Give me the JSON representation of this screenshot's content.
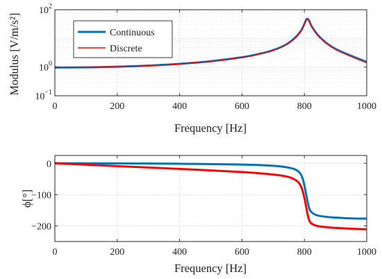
{
  "chart_data": [
    {
      "type": "line",
      "xlabel": "Frequency [Hz]",
      "ylabel": "Modulus [V/m/s²]",
      "xlim": [
        0,
        1000
      ],
      "ylim": [
        0.1,
        100
      ],
      "yscale": "log",
      "grid": true,
      "legend_position": "top-left",
      "x_ticks": [
        "0",
        "200",
        "400",
        "600",
        "800",
        "1000"
      ],
      "y_tick_mantissa": "10",
      "y_tick_exponents": [
        "−1",
        "0",
        "2"
      ],
      "y_tick_values": [
        0.1,
        1,
        100
      ],
      "x": [
        0,
        100,
        200,
        300,
        400,
        500,
        600,
        650,
        700,
        740,
        770,
        790,
        800,
        806,
        810,
        815,
        825,
        850,
        900,
        1000
      ],
      "series": [
        {
          "name": "Continuous",
          "color": "#0072BD",
          "values": [
            0.97,
            0.98,
            1.03,
            1.13,
            1.3,
            1.6,
            2.2,
            2.8,
            3.9,
            6.0,
            10.5,
            19.0,
            32.0,
            45.0,
            48.0,
            42.0,
            25.0,
            11.0,
            4.3,
            1.5
          ]
        },
        {
          "name": "Discrete",
          "color": "#FF0000",
          "values": [
            0.96,
            0.97,
            1.02,
            1.12,
            1.28,
            1.58,
            2.15,
            2.75,
            3.8,
            5.9,
            10.2,
            18.6,
            31.0,
            44.0,
            47.0,
            41.0,
            24.0,
            10.5,
            4.1,
            1.4
          ]
        }
      ]
    },
    {
      "type": "line",
      "xlabel": "Frequency [Hz]",
      "ylabel": "ϕ[°]",
      "xlim": [
        0,
        1000
      ],
      "ylim": [
        -250,
        25
      ],
      "grid": true,
      "x_ticks": [
        "0",
        "200",
        "400",
        "600",
        "800",
        "1000"
      ],
      "y_ticks": [
        "0",
        "−100",
        "−200"
      ],
      "y_tick_values": [
        0,
        -100,
        -200
      ],
      "x": [
        0,
        200,
        400,
        600,
        700,
        750,
        780,
        795,
        805,
        812,
        820,
        840,
        880,
        950,
        1000
      ],
      "series": [
        {
          "name": "Continuous",
          "color": "#0072BD",
          "values": [
            0,
            -0.5,
            -1.5,
            -4,
            -8,
            -14,
            -25,
            -50,
            -95,
            -130,
            -153,
            -166,
            -172,
            -176,
            -177
          ]
        },
        {
          "name": "Discrete",
          "color": "#FF0000",
          "values": [
            0,
            -9,
            -18,
            -28,
            -36,
            -44,
            -60,
            -90,
            -135,
            -170,
            -190,
            -200,
            -205,
            -209,
            -211
          ]
        }
      ]
    }
  ]
}
